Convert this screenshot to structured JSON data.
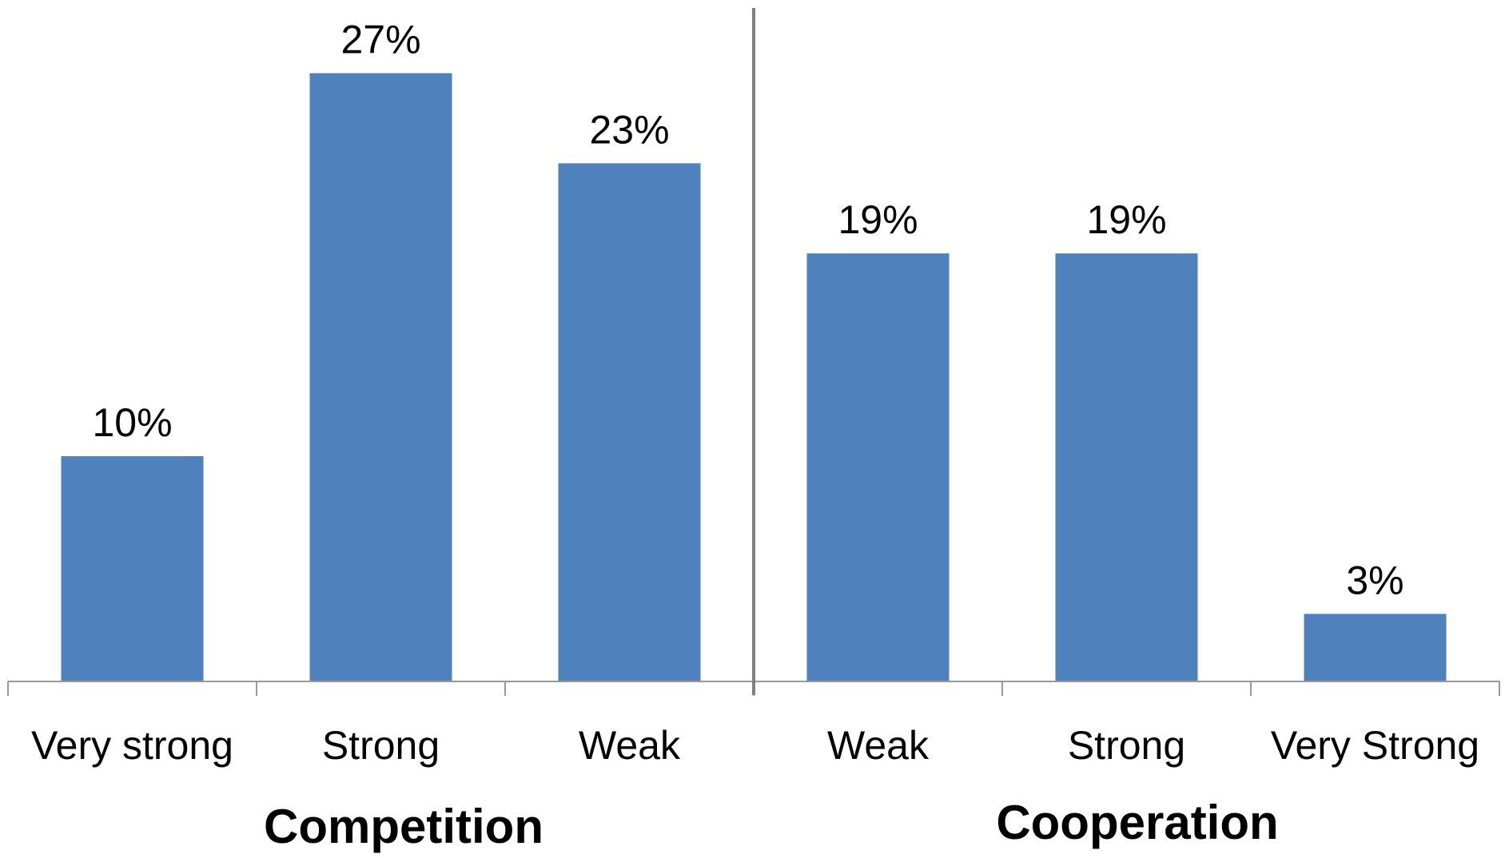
{
  "chart_data": {
    "type": "bar",
    "categories": [
      "Very strong",
      "Strong",
      "Weak",
      "Weak",
      "Strong",
      "Very Strong"
    ],
    "values": [
      10,
      27,
      23,
      19,
      19,
      3
    ],
    "data_labels": [
      "10%",
      "27%",
      "23%",
      "19%",
      "19%",
      "3%"
    ],
    "groups": [
      {
        "label": "Competition",
        "categories": [
          "Very strong",
          "Strong",
          "Weak"
        ]
      },
      {
        "label": "Cooperation",
        "categories": [
          "Weak",
          "Strong",
          "Very Strong"
        ]
      }
    ],
    "ylim": [
      0,
      30
    ],
    "grid": false,
    "legend": "none",
    "bar_color": "#4f81bd",
    "divider_color": "#808080"
  }
}
